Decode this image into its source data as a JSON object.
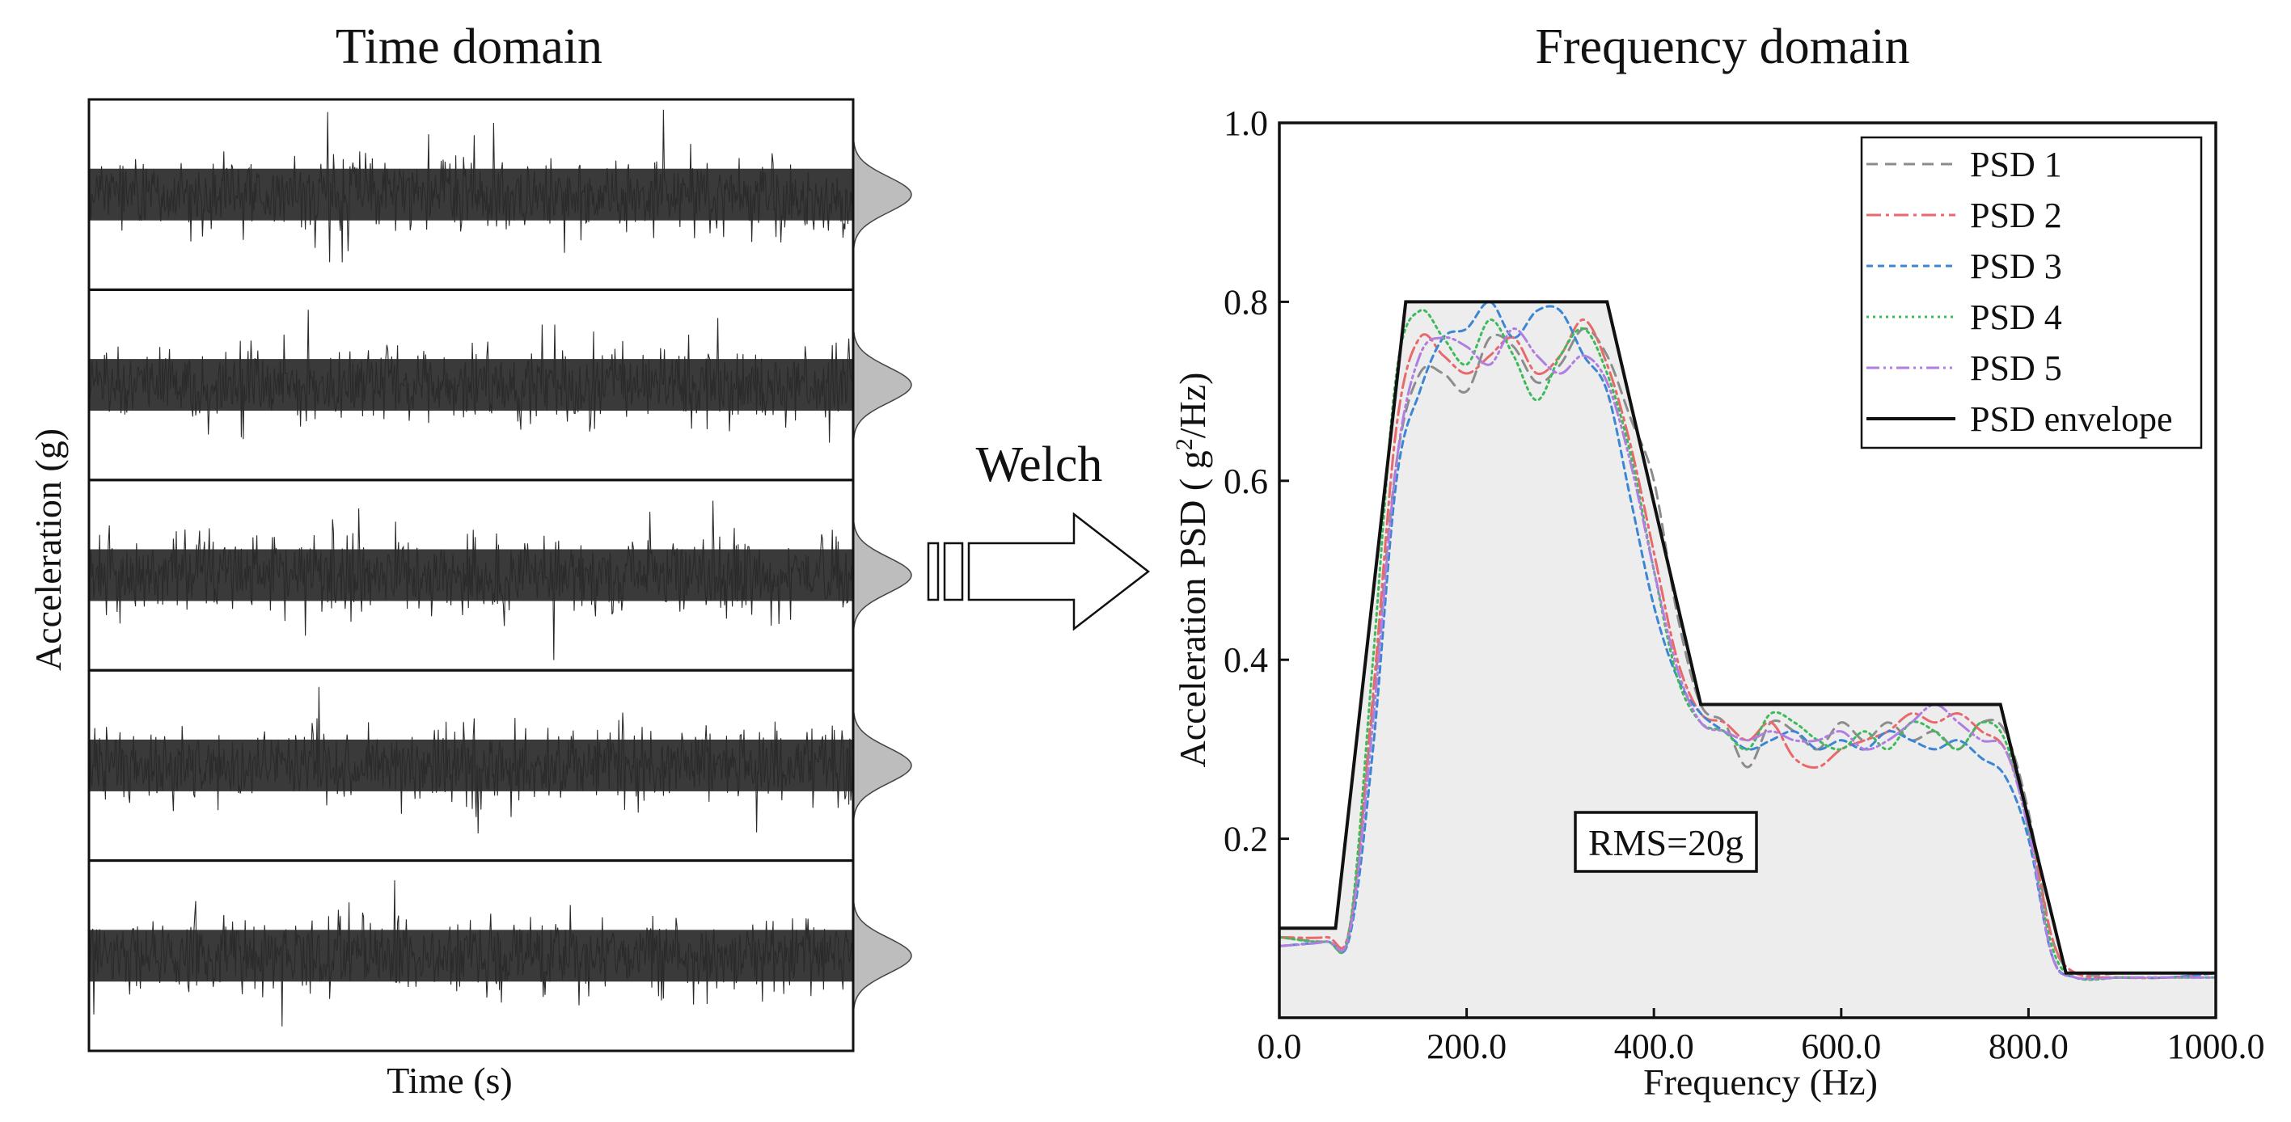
{
  "figure": {
    "left_title": "Time domain",
    "right_title": "Frequency domain",
    "arrow_label": "Welch"
  },
  "time_domain": {
    "ylabel": "Acceleration (g)",
    "xlabel": "Time (s)",
    "trace_count": 5
  },
  "chart_data": [
    {
      "type": "line",
      "title": "Time domain",
      "xlabel": "Time (s)",
      "ylabel": "Acceleration (g)",
      "series_count": 5,
      "note": "Five stacked random-vibration acceleration time histories, each with a Gaussian amplitude distribution sketch on the right"
    },
    {
      "type": "line",
      "title": "Frequency domain",
      "xlabel": "Frequency (Hz)",
      "ylabel": "Acceleration PSD ( g²/Hz)",
      "ylabel_parts": {
        "main": "Acceleration PSD ( g",
        "sup": "2",
        "tail": "/Hz)"
      },
      "xlim": [
        0,
        1000
      ],
      "ylim": [
        0,
        1.0
      ],
      "xticks": [
        "0.0",
        "200.0",
        "400.0",
        "600.0",
        "800.0",
        "1000.0"
      ],
      "yticks": [
        "0.2",
        "0.4",
        "0.6",
        "0.8",
        "1.0"
      ],
      "annotation": "RMS=20g",
      "envelope": {
        "name": "PSD envelope",
        "x": [
          0,
          60,
          135,
          350,
          450,
          770,
          840,
          1000
        ],
        "y": [
          0.1,
          0.1,
          0.8,
          0.8,
          0.35,
          0.35,
          0.05,
          0.05
        ]
      },
      "series": [
        {
          "name": "PSD 1",
          "color": "#8c8c8c",
          "dash": "14,9",
          "x": [
            0,
            50,
            75,
            100,
            125,
            150,
            175,
            200,
            225,
            250,
            275,
            300,
            325,
            350,
            375,
            400,
            425,
            450,
            475,
            500,
            525,
            550,
            575,
            600,
            625,
            650,
            675,
            700,
            725,
            750,
            775,
            800,
            825,
            850,
            900,
            950,
            1000
          ],
          "y": [
            0.09,
            0.085,
            0.095,
            0.35,
            0.62,
            0.72,
            0.72,
            0.7,
            0.76,
            0.75,
            0.71,
            0.73,
            0.77,
            0.74,
            0.67,
            0.6,
            0.45,
            0.35,
            0.33,
            0.28,
            0.33,
            0.32,
            0.3,
            0.33,
            0.31,
            0.33,
            0.31,
            0.32,
            0.3,
            0.33,
            0.32,
            0.23,
            0.09,
            0.05,
            0.05,
            0.05,
            0.05
          ]
        },
        {
          "name": "PSD 2",
          "color": "#e8696b",
          "dash": "18,6,4,6",
          "x": [
            0,
            50,
            75,
            100,
            125,
            150,
            175,
            200,
            225,
            250,
            275,
            300,
            325,
            350,
            375,
            400,
            425,
            450,
            475,
            500,
            525,
            550,
            575,
            600,
            625,
            650,
            675,
            700,
            725,
            750,
            775,
            800,
            825,
            850,
            900,
            950,
            1000
          ],
          "y": [
            0.09,
            0.09,
            0.1,
            0.36,
            0.66,
            0.76,
            0.74,
            0.72,
            0.74,
            0.76,
            0.72,
            0.74,
            0.78,
            0.73,
            0.64,
            0.52,
            0.4,
            0.34,
            0.33,
            0.31,
            0.33,
            0.29,
            0.28,
            0.3,
            0.31,
            0.32,
            0.34,
            0.33,
            0.34,
            0.32,
            0.3,
            0.22,
            0.09,
            0.05,
            0.045,
            0.045,
            0.05
          ]
        },
        {
          "name": "PSD 3",
          "color": "#3c86d4",
          "dash": "8,6",
          "x": [
            0,
            50,
            75,
            100,
            125,
            150,
            175,
            200,
            225,
            250,
            275,
            300,
            325,
            350,
            375,
            400,
            425,
            450,
            475,
            500,
            525,
            550,
            575,
            600,
            625,
            650,
            675,
            700,
            725,
            750,
            775,
            800,
            825,
            850,
            900,
            950,
            1000
          ],
          "y": [
            0.08,
            0.085,
            0.09,
            0.3,
            0.6,
            0.7,
            0.76,
            0.77,
            0.8,
            0.76,
            0.79,
            0.79,
            0.74,
            0.7,
            0.58,
            0.46,
            0.38,
            0.34,
            0.32,
            0.3,
            0.31,
            0.32,
            0.3,
            0.31,
            0.3,
            0.32,
            0.31,
            0.3,
            0.31,
            0.29,
            0.27,
            0.2,
            0.07,
            0.045,
            0.045,
            0.045,
            0.05
          ]
        },
        {
          "name": "PSD 4",
          "color": "#3dbb5a",
          "dash": "3,5",
          "x": [
            0,
            50,
            75,
            100,
            125,
            150,
            175,
            200,
            225,
            250,
            275,
            300,
            325,
            350,
            375,
            400,
            425,
            450,
            475,
            500,
            525,
            550,
            575,
            600,
            625,
            650,
            675,
            700,
            725,
            750,
            775,
            800,
            825,
            850,
            900,
            950,
            1000
          ],
          "y": [
            0.09,
            0.085,
            0.1,
            0.4,
            0.72,
            0.79,
            0.76,
            0.73,
            0.78,
            0.74,
            0.69,
            0.74,
            0.77,
            0.72,
            0.63,
            0.5,
            0.38,
            0.33,
            0.32,
            0.3,
            0.34,
            0.33,
            0.31,
            0.3,
            0.32,
            0.3,
            0.33,
            0.32,
            0.3,
            0.33,
            0.31,
            0.21,
            0.08,
            0.045,
            0.045,
            0.045,
            0.045
          ]
        },
        {
          "name": "PSD 5",
          "color": "#b07ee0",
          "dash": "16,5,3,5,3,5",
          "x": [
            0,
            50,
            75,
            100,
            125,
            150,
            175,
            200,
            225,
            250,
            275,
            300,
            325,
            350,
            375,
            400,
            425,
            450,
            475,
            500,
            525,
            550,
            575,
            600,
            625,
            650,
            675,
            700,
            725,
            750,
            775,
            800,
            825,
            850,
            900,
            950,
            1000
          ],
          "y": [
            0.08,
            0.085,
            0.095,
            0.33,
            0.62,
            0.74,
            0.76,
            0.75,
            0.73,
            0.77,
            0.74,
            0.72,
            0.74,
            0.71,
            0.62,
            0.5,
            0.39,
            0.33,
            0.32,
            0.31,
            0.32,
            0.31,
            0.31,
            0.32,
            0.3,
            0.31,
            0.33,
            0.35,
            0.33,
            0.31,
            0.3,
            0.21,
            0.07,
            0.045,
            0.045,
            0.045,
            0.045
          ]
        }
      ],
      "legend": {
        "placement": "top-right"
      }
    }
  ]
}
